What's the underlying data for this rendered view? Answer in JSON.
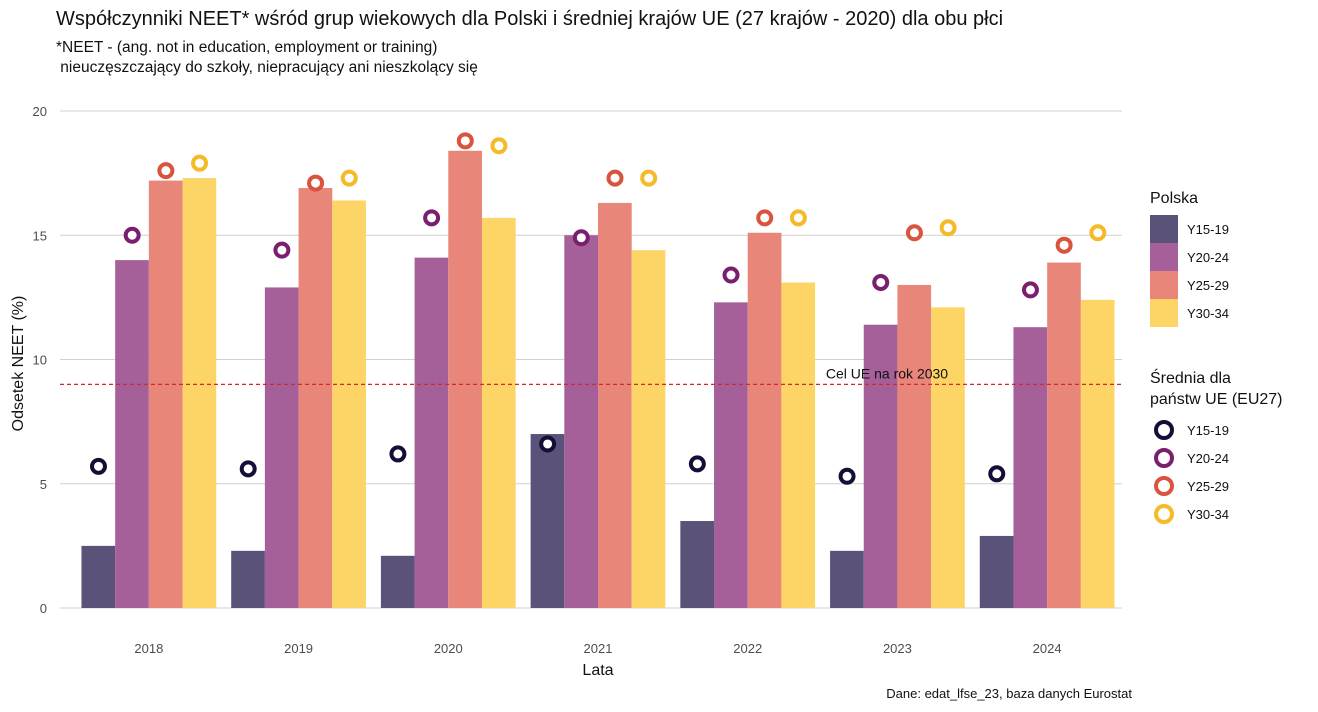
{
  "title": "Współczynniki NEET* wśród grup wiekowych dla Polski i średniej krajów UE (27 krajów - 2020) dla obu płci",
  "subtitle": "*NEET - (ang. not in education, employment or training)\n nieuczęszczający do szkoły, niepracujący ani nieszkolący się",
  "caption": "Dane: edat_lfse_23, baza danych Eurostat",
  "chart_data": {
    "type": "bar",
    "xlabel": "Lata",
    "ylabel": "Odsetek NEET (%)",
    "ylim": [
      0,
      20
    ],
    "yticks": [
      0,
      5,
      10,
      15,
      20
    ],
    "grid": true,
    "categories": [
      "2018",
      "2019",
      "2020",
      "2021",
      "2022",
      "2023",
      "2024"
    ],
    "series": [
      {
        "name": "Y15-19",
        "color": "#5a5279",
        "values": [
          2.5,
          2.3,
          2.1,
          7.0,
          3.5,
          2.3,
          2.9
        ]
      },
      {
        "name": "Y20-24",
        "color": "#a5609a",
        "values": [
          14.0,
          12.9,
          14.1,
          15.0,
          12.3,
          11.4,
          11.3
        ]
      },
      {
        "name": "Y25-29",
        "color": "#e8867a",
        "values": [
          17.2,
          16.9,
          18.4,
          16.3,
          15.1,
          13.0,
          13.9
        ]
      },
      {
        "name": "Y30-34",
        "color": "#fdd466",
        "values": [
          17.3,
          16.4,
          15.7,
          14.4,
          13.1,
          12.1,
          12.4
        ]
      }
    ],
    "eu27_series": [
      {
        "name": "Y15-19",
        "color": "#140f38",
        "values": [
          5.7,
          5.6,
          6.2,
          6.6,
          5.8,
          5.3,
          5.4
        ]
      },
      {
        "name": "Y20-24",
        "color": "#7a1f6e",
        "values": [
          15.0,
          14.4,
          15.7,
          14.9,
          13.4,
          13.1,
          12.8
        ]
      },
      {
        "name": "Y25-29",
        "color": "#d9543f",
        "values": [
          17.6,
          17.1,
          18.8,
          17.3,
          15.7,
          15.1,
          14.6
        ]
      },
      {
        "name": "Y30-34",
        "color": "#f5ba28",
        "values": [
          17.9,
          17.3,
          18.6,
          17.3,
          15.7,
          15.3,
          15.1
        ]
      }
    ],
    "reference_line": {
      "value": 9,
      "label": "Cel UE na rok 2030",
      "color": "#d62728",
      "style": "dashed"
    },
    "legends": {
      "bars_title": "Polska",
      "points_title": "Średnia dla\npaństw UE (EU27)",
      "placement": "right"
    }
  }
}
